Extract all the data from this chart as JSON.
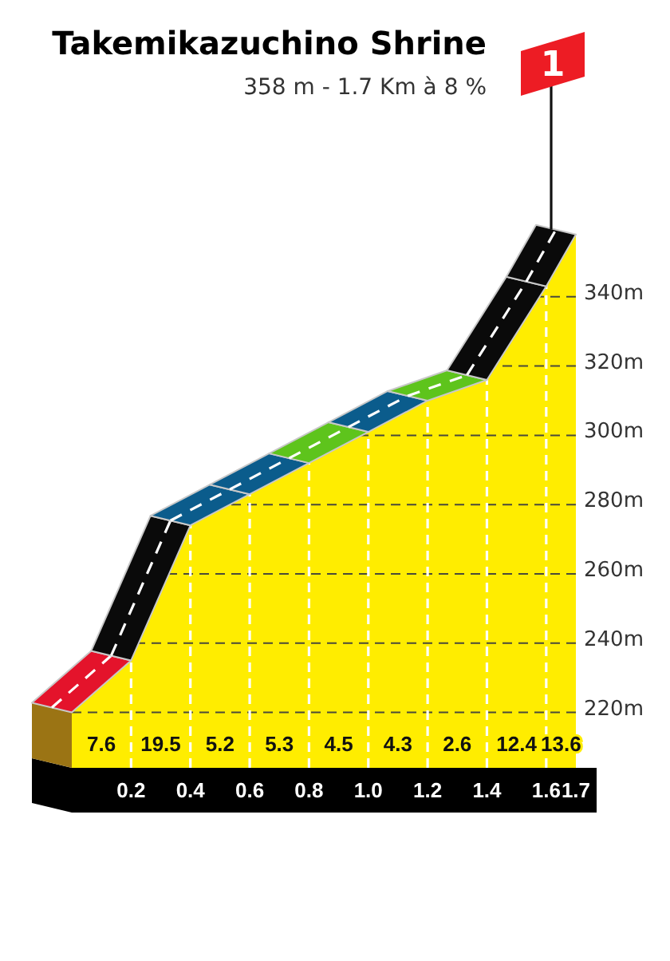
{
  "chart_data": {
    "type": "area",
    "title": "Takemikazuchino Shrine",
    "subtitle": "358 m - 1.7 Km à 8 %",
    "x": [
      0,
      0.2,
      0.4,
      0.6,
      0.8,
      1.0,
      1.2,
      1.4,
      1.6,
      1.7
    ],
    "values": [
      220,
      235,
      274,
      283,
      292,
      301,
      310,
      316,
      343,
      358
    ],
    "color": "#ffed00",
    "colors": [
      "#e4132b",
      "#0a0a0a",
      "#0b5c8c",
      "#0b5c8c",
      "#5ec41c",
      "#0b5c8c",
      "#5ec41c",
      "#0a0a0a",
      "#0a0a0a",
      null
    ],
    "xlim": [
      0,
      1.7
    ],
    "xticks": [
      0.2,
      0.4,
      0.6,
      0.8,
      {
        "value": 1,
        "label": "1.0"
      },
      1.2,
      1.4,
      1.6,
      1.7
    ],
    "ylim": [
      204,
      360
    ],
    "yticks": [
      {
        "value": 220,
        "label": "220m"
      },
      {
        "value": 240,
        "label": "240m"
      },
      {
        "value": 260,
        "label": "260m"
      },
      {
        "value": 280,
        "label": "280m"
      },
      {
        "value": 300,
        "label": "300m"
      },
      {
        "value": 320,
        "label": "320m"
      },
      {
        "value": 340,
        "label": "340m"
      }
    ],
    "grid": true,
    "annotations": [
      "7.6",
      "19.5",
      "5.2",
      "5.3",
      "4.5",
      "4.3",
      "2.6",
      "12.4",
      "13.6",
      "1"
    ]
  }
}
